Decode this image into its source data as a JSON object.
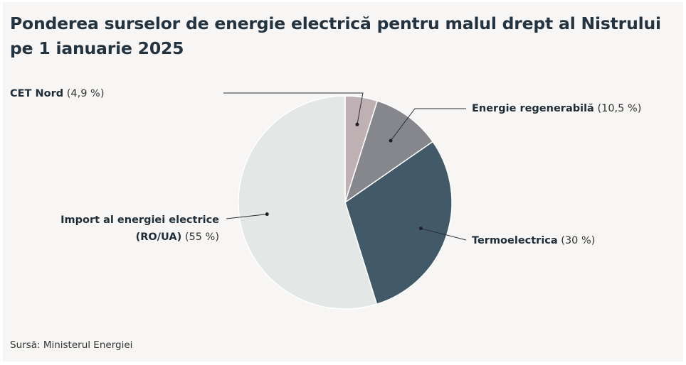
{
  "chart_data": {
    "type": "pie",
    "title_line1": "Ponderea surselor de energie electrică pentru malul drept al Nistrului",
    "title_line2": "pe 1 ianuarie 2025",
    "slices": [
      {
        "name": "CET Nord",
        "pct_label": "(4,9 %)",
        "value": 4.9,
        "color": "#bfb0b3"
      },
      {
        "name": "Energie regenerabilă",
        "pct_label": "(10,5 %)",
        "value": 10.5,
        "color": "#86878d"
      },
      {
        "name": "Termoelectrica",
        "pct_label": "(30 %)",
        "value": 30,
        "color": "#425a68"
      },
      {
        "name_line1": "Import al energiei electrice",
        "name_line2": "(RO/UA)",
        "pct_label": "(55 %)",
        "value": 55,
        "color": "#e3e7e6"
      }
    ]
  },
  "source": "Sursă: Ministerul Energiei"
}
